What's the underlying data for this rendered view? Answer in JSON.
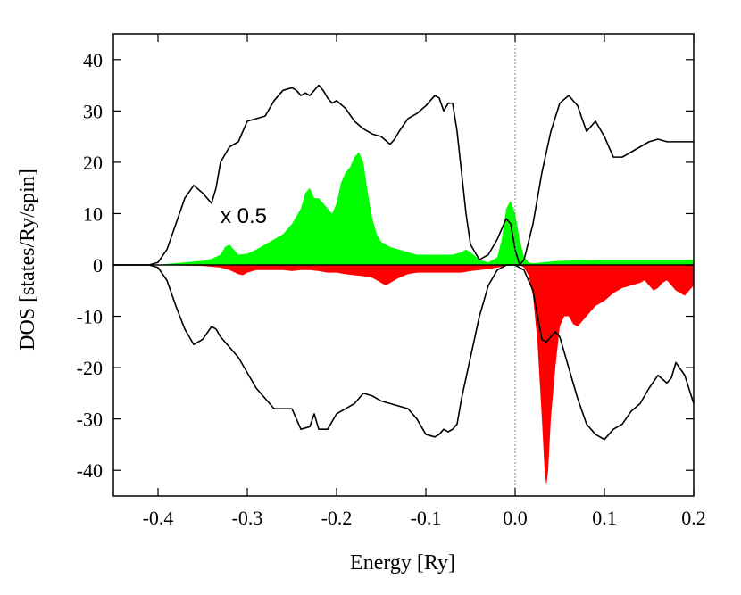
{
  "chart_data": {
    "type": "area",
    "xlabel": "Energy [Ry]",
    "ylabel": "DOS [states/Ry/spin]",
    "xlim": [
      -0.45,
      0.2
    ],
    "ylim": [
      -45,
      45
    ],
    "xticks": [
      -0.4,
      -0.3,
      -0.2,
      -0.1,
      0.0,
      0.1,
      0.2
    ],
    "xtick_labels": [
      "-0.4",
      "-0.3",
      "-0.2",
      "-0.1",
      "0.0",
      "0.1",
      "0.2"
    ],
    "yticks": [
      40,
      30,
      20,
      10,
      0,
      -10,
      -20,
      -30,
      -40
    ],
    "ytick_labels": [
      "40",
      "30",
      "20",
      "10",
      "0",
      "-10",
      "-20",
      "-30",
      "-40"
    ],
    "fermi_level": 0.0,
    "annotation": "x 0.5",
    "grid": false,
    "colors": {
      "spin_up_fill": "#00ff00",
      "spin_down_fill": "#ff0000",
      "line": "#000000",
      "fermi_line": "#888888"
    },
    "series": [
      {
        "x": [
          -0.45,
          -0.41,
          -0.4,
          -0.39,
          -0.38,
          -0.37,
          -0.36,
          -0.35,
          -0.345,
          -0.34,
          -0.335,
          -0.33,
          -0.32,
          -0.31,
          -0.3,
          -0.29,
          -0.28,
          -0.27,
          -0.26,
          -0.25,
          -0.245,
          -0.24,
          -0.235,
          -0.23,
          -0.225,
          -0.22,
          -0.215,
          -0.21,
          -0.205,
          -0.2,
          -0.19,
          -0.18,
          -0.17,
          -0.16,
          -0.15,
          -0.14,
          -0.135,
          -0.13,
          -0.12,
          -0.11,
          -0.1,
          -0.09,
          -0.085,
          -0.08,
          -0.075,
          -0.07,
          -0.065,
          -0.06,
          -0.055,
          -0.05,
          -0.04,
          -0.03,
          -0.02,
          -0.01,
          -0.005,
          0.0,
          0.005,
          0.01,
          0.02,
          0.03,
          0.04,
          0.05,
          0.06,
          0.07,
          0.08,
          0.09,
          0.1,
          0.11,
          0.12,
          0.125,
          0.13,
          0.14,
          0.15,
          0.16,
          0.17,
          0.18,
          0.19,
          0.2
        ],
        "y": [
          0,
          0,
          0.5,
          3,
          8,
          13,
          15.5,
          14,
          13,
          12,
          15,
          20,
          23,
          24,
          28,
          28.5,
          29,
          32,
          34,
          34.5,
          34,
          33,
          33.5,
          33,
          34,
          35,
          34,
          32.5,
          31.5,
          32,
          30.5,
          28,
          26.5,
          25.5,
          25,
          23.5,
          24.5,
          26,
          28.5,
          29.5,
          31,
          33,
          32.5,
          30,
          31.5,
          31.5,
          26,
          18,
          10,
          4,
          1,
          2,
          5,
          9,
          8,
          3,
          0,
          1,
          8,
          18,
          26,
          31.5,
          33,
          31,
          26,
          28,
          25,
          21,
          21,
          21.5,
          22,
          23,
          24,
          24.5,
          24,
          24,
          24,
          24
        ]
      },
      {
        "x": [
          -0.45,
          -0.41,
          -0.4,
          -0.39,
          -0.38,
          -0.37,
          -0.36,
          -0.35,
          -0.34,
          -0.335,
          -0.33,
          -0.32,
          -0.31,
          -0.3,
          -0.29,
          -0.28,
          -0.27,
          -0.26,
          -0.25,
          -0.24,
          -0.23,
          -0.225,
          -0.22,
          -0.21,
          -0.2,
          -0.19,
          -0.18,
          -0.17,
          -0.16,
          -0.15,
          -0.14,
          -0.13,
          -0.12,
          -0.11,
          -0.1,
          -0.09,
          -0.085,
          -0.08,
          -0.075,
          -0.07,
          -0.065,
          -0.06,
          -0.05,
          -0.04,
          -0.03,
          -0.02,
          -0.01,
          0.0,
          0.01,
          0.02,
          0.025,
          0.03,
          0.035,
          0.04,
          0.045,
          0.05,
          0.06,
          0.07,
          0.08,
          0.09,
          0.1,
          0.11,
          0.12,
          0.13,
          0.14,
          0.15,
          0.16,
          0.17,
          0.175,
          0.18,
          0.19,
          0.2
        ],
        "y": [
          0,
          0,
          -0.5,
          -3,
          -8,
          -12.5,
          -15.5,
          -14.5,
          -12,
          -12.5,
          -14,
          -16,
          -18,
          -21,
          -24,
          -26,
          -28,
          -28,
          -28,
          -32,
          -31.5,
          -29,
          -32,
          -32,
          -29,
          -28,
          -27,
          -25,
          -25.5,
          -26.5,
          -27,
          -27.5,
          -28,
          -30,
          -33,
          -33.5,
          -33,
          -32,
          -32.5,
          -32,
          -31,
          -26,
          -18,
          -10,
          -4,
          -1,
          0,
          0,
          -1,
          -5,
          -10,
          -14.5,
          -15,
          -14,
          -13,
          -14,
          -20,
          -26,
          -31,
          -33,
          -34,
          -32,
          -31,
          -28.5,
          -27,
          -24,
          -21.5,
          -23,
          -22,
          -19,
          -21.5,
          -27
        ]
      },
      {
        "x": [
          -0.45,
          -0.41,
          -0.4,
          -0.39,
          -0.37,
          -0.35,
          -0.34,
          -0.33,
          -0.325,
          -0.32,
          -0.315,
          -0.31,
          -0.3,
          -0.29,
          -0.28,
          -0.27,
          -0.26,
          -0.25,
          -0.24,
          -0.235,
          -0.23,
          -0.225,
          -0.22,
          -0.215,
          -0.21,
          -0.205,
          -0.2,
          -0.195,
          -0.19,
          -0.185,
          -0.18,
          -0.175,
          -0.17,
          -0.165,
          -0.16,
          -0.155,
          -0.15,
          -0.14,
          -0.13,
          -0.12,
          -0.11,
          -0.1,
          -0.09,
          -0.08,
          -0.07,
          -0.06,
          -0.055,
          -0.05,
          -0.04,
          -0.03,
          -0.02,
          -0.015,
          -0.01,
          -0.005,
          0.0,
          0.005,
          0.01,
          0.015,
          0.02,
          0.03,
          0.05,
          0.1,
          0.15,
          0.2
        ],
        "y": [
          0,
          0,
          0,
          0.2,
          0.5,
          0.8,
          1.2,
          2,
          3.5,
          4,
          3,
          2,
          2.2,
          3,
          4,
          5,
          6,
          8,
          11,
          14,
          15,
          13,
          13,
          12,
          11,
          10,
          12,
          16,
          18,
          19,
          21,
          22,
          20,
          14,
          9,
          6,
          4.5,
          3.5,
          3,
          2.5,
          2,
          2,
          2,
          2,
          2,
          2.5,
          3,
          2.5,
          1,
          0.5,
          1.5,
          5,
          11,
          12.5,
          10,
          5,
          1.5,
          0.5,
          0.3,
          0.5,
          0.8,
          1,
          1,
          1
        ]
      },
      {
        "x": [
          -0.45,
          -0.41,
          -0.4,
          -0.35,
          -0.33,
          -0.32,
          -0.31,
          -0.305,
          -0.3,
          -0.29,
          -0.28,
          -0.27,
          -0.26,
          -0.25,
          -0.24,
          -0.23,
          -0.22,
          -0.21,
          -0.2,
          -0.19,
          -0.18,
          -0.17,
          -0.16,
          -0.15,
          -0.145,
          -0.14,
          -0.13,
          -0.12,
          -0.11,
          -0.1,
          -0.09,
          -0.08,
          -0.07,
          -0.06,
          -0.05,
          -0.04,
          -0.03,
          -0.02,
          -0.01,
          0.0,
          0.005,
          0.01,
          0.015,
          0.02,
          0.025,
          0.03,
          0.033,
          0.035,
          0.037,
          0.04,
          0.045,
          0.05,
          0.055,
          0.06,
          0.065,
          0.07,
          0.08,
          0.09,
          0.1,
          0.11,
          0.12,
          0.13,
          0.14,
          0.145,
          0.15,
          0.155,
          0.16,
          0.165,
          0.17,
          0.175,
          0.18,
          0.185,
          0.19,
          0.195,
          0.2
        ],
        "y": [
          0,
          0,
          0,
          -0.2,
          -0.5,
          -1,
          -1.8,
          -2,
          -1.5,
          -1,
          -1,
          -1,
          -1,
          -1.2,
          -1,
          -1,
          -1.2,
          -1.5,
          -1.5,
          -1.8,
          -2,
          -2.2,
          -2.5,
          -3.5,
          -4,
          -3.5,
          -2.5,
          -1.8,
          -1.5,
          -1.5,
          -1.5,
          -1.5,
          -1.5,
          -1.5,
          -1.2,
          -1,
          -0.8,
          -0.5,
          -0.2,
          0,
          0,
          -0.5,
          -2,
          -6,
          -15,
          -30,
          -40,
          -43,
          -40,
          -30,
          -20,
          -12,
          -10,
          -10,
          -11.5,
          -12,
          -10,
          -8,
          -7,
          -5.5,
          -4.5,
          -4,
          -3.5,
          -3,
          -4,
          -5,
          -4.5,
          -3.5,
          -3,
          -4,
          -5,
          -5.5,
          -6,
          -5,
          -4
        ]
      }
    ]
  }
}
